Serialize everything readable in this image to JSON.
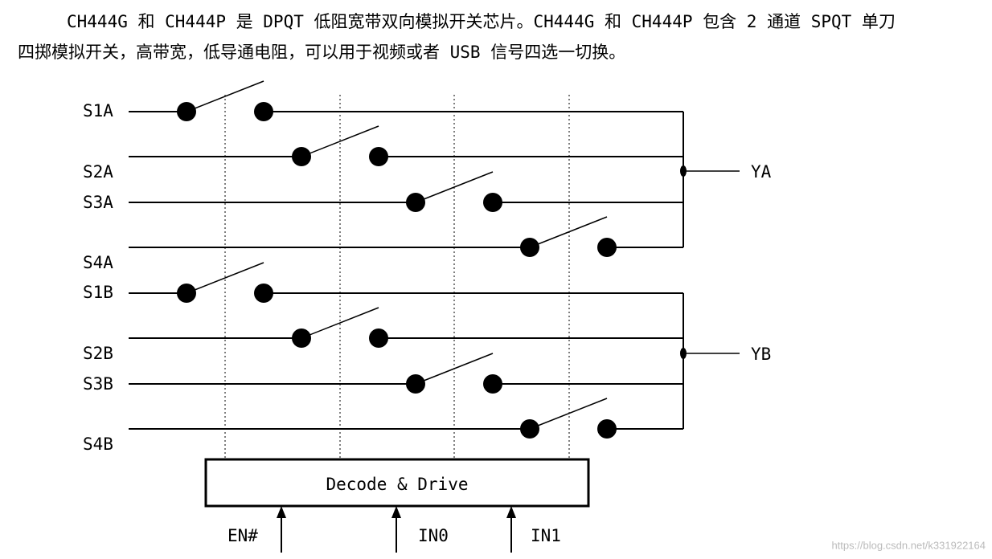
{
  "paragraph": {
    "lines": [
      "CH444G 和 CH444P 是 DPQT 低阻宽带双向模拟开关芯片。CH444G 和 CH444P 包含 2 通道 SPQT 单刀",
      "四掷模拟开关，高带宽，低导通电阻，可以用于视频或者 USB 信号四选一切换。"
    ]
  },
  "diagram": {
    "inputs": [
      "S1A",
      "S2A",
      "S3A",
      "S4A",
      "S1B",
      "S2B",
      "S3B",
      "S4B"
    ],
    "outputs": [
      "YA",
      "YB"
    ],
    "block": "Decode & Drive",
    "controls": [
      "EN#",
      "IN0",
      "IN1"
    ]
  },
  "watermark": "https://blog.csdn.net/k331922164"
}
